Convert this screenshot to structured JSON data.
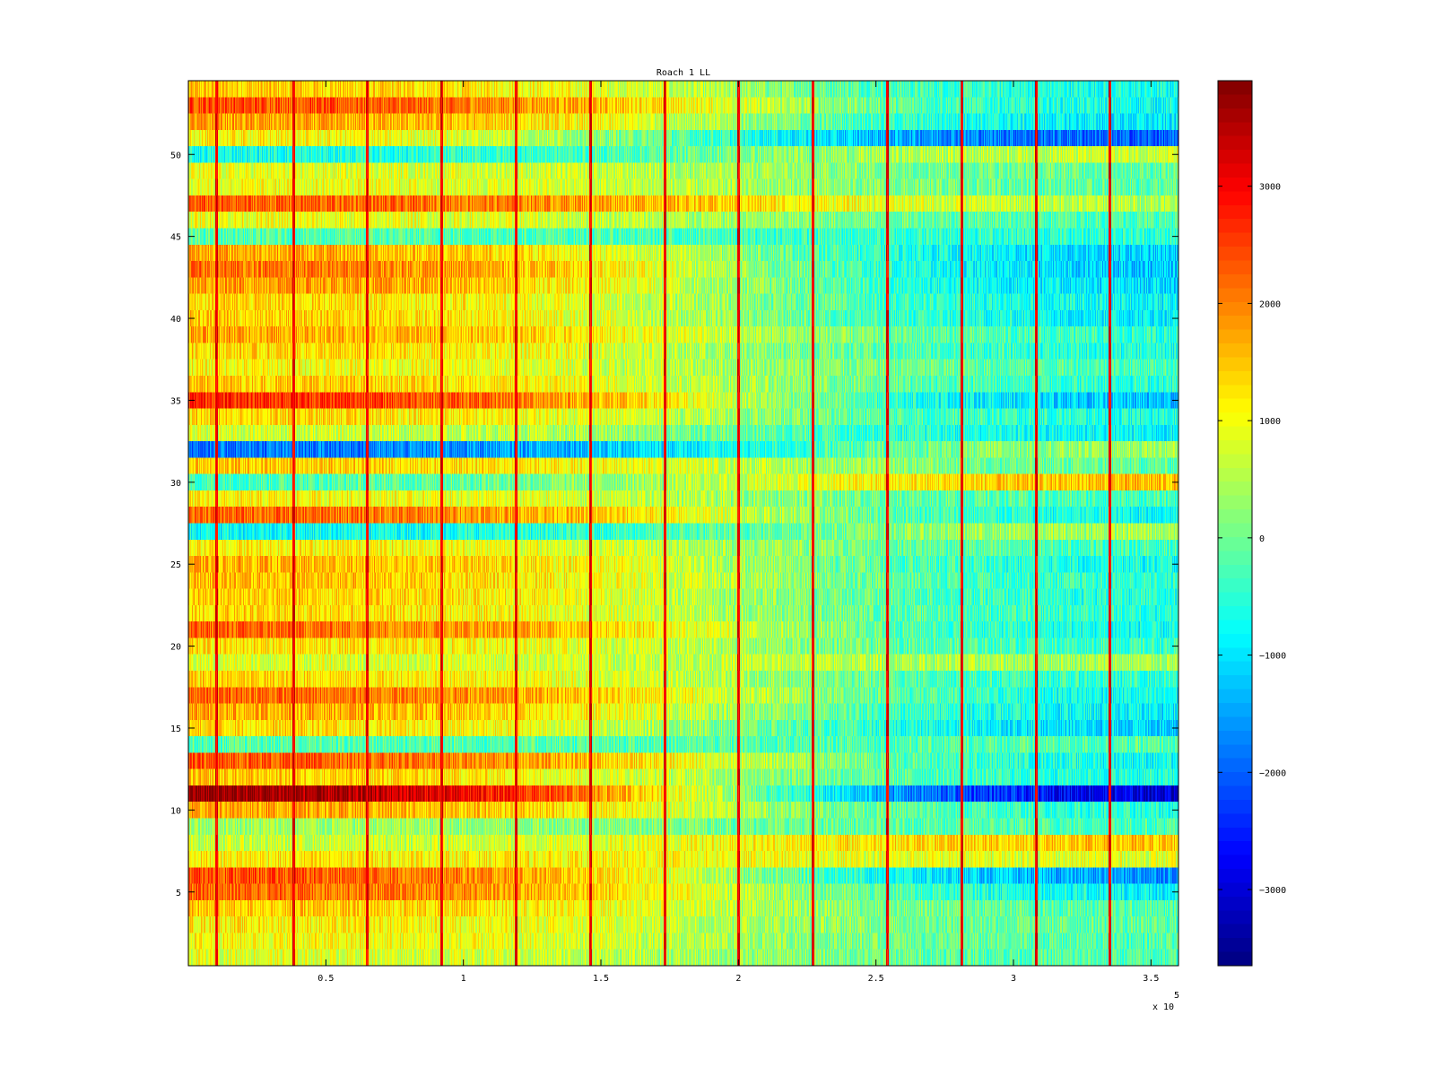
{
  "chart_data": {
    "type": "heatmap",
    "title": "Roach 1 LL",
    "xlabel": "",
    "ylabel": "",
    "x_multiplier_label": "x 10",
    "x_multiplier_exponent": "5",
    "xlim": [
      0,
      3.6
    ],
    "ylim": [
      0.5,
      54.5
    ],
    "rows": 54,
    "clim": [
      -3650,
      3900
    ],
    "colormap": "jet",
    "x_ticks": [
      {
        "value": 0.5,
        "label": "0.5"
      },
      {
        "value": 1,
        "label": "1"
      },
      {
        "value": 1.5,
        "label": "1.5"
      },
      {
        "value": 2,
        "label": "2"
      },
      {
        "value": 2.5,
        "label": "2.5"
      },
      {
        "value": 3,
        "label": "3"
      },
      {
        "value": 3.5,
        "label": "3.5"
      }
    ],
    "y_ticks": [
      {
        "value": 5,
        "label": "5"
      },
      {
        "value": 10,
        "label": "10"
      },
      {
        "value": 15,
        "label": "15"
      },
      {
        "value": 20,
        "label": "20"
      },
      {
        "value": 25,
        "label": "25"
      },
      {
        "value": 30,
        "label": "30"
      },
      {
        "value": 35,
        "label": "35"
      },
      {
        "value": 40,
        "label": "40"
      },
      {
        "value": 45,
        "label": "45"
      },
      {
        "value": 50,
        "label": "50"
      }
    ],
    "colorbar_ticks": [
      {
        "value": 3000,
        "label": "3000"
      },
      {
        "value": 2000,
        "label": "2000"
      },
      {
        "value": 1000,
        "label": "1000"
      },
      {
        "value": 0,
        "label": "0"
      },
      {
        "value": -1000,
        "label": "−1000"
      },
      {
        "value": -2000,
        "label": "−2000"
      },
      {
        "value": -3000,
        "label": "−3000"
      }
    ],
    "event_lines_x": [
      0.1,
      0.38,
      0.65,
      0.92,
      1.19,
      1.46,
      1.73,
      2.0,
      2.27,
      2.54,
      2.81,
      3.08,
      3.35
    ],
    "row_profiles": [
      {
        "row": 54,
        "start": 1500,
        "end": -800
      },
      {
        "row": 53,
        "start": 2500,
        "end": -900
      },
      {
        "row": 52,
        "start": 1800,
        "end": -1100
      },
      {
        "row": 51,
        "start": 1200,
        "end": -2200
      },
      {
        "row": 50,
        "start": -700,
        "end": 800
      },
      {
        "row": 49,
        "start": 900,
        "end": -100
      },
      {
        "row": 48,
        "start": 1000,
        "end": -200
      },
      {
        "row": 47,
        "start": 2300,
        "end": 400
      },
      {
        "row": 46,
        "start": 1000,
        "end": -300
      },
      {
        "row": 45,
        "start": -200,
        "end": -500
      },
      {
        "row": 44,
        "start": 1800,
        "end": -1300
      },
      {
        "row": 43,
        "start": 2200,
        "end": -1400
      },
      {
        "row": 42,
        "start": 1900,
        "end": -1200
      },
      {
        "row": 41,
        "start": 1400,
        "end": -900
      },
      {
        "row": 40,
        "start": 1500,
        "end": -1000
      },
      {
        "row": 39,
        "start": 1800,
        "end": -600
      },
      {
        "row": 38,
        "start": 1400,
        "end": -700
      },
      {
        "row": 37,
        "start": 1100,
        "end": -300
      },
      {
        "row": 36,
        "start": 1500,
        "end": -600
      },
      {
        "row": 35,
        "start": 2800,
        "end": -1500
      },
      {
        "row": 34,
        "start": 1400,
        "end": -700
      },
      {
        "row": 33,
        "start": 800,
        "end": -900
      },
      {
        "row": 32,
        "start": -1900,
        "end": 500
      },
      {
        "row": 31,
        "start": 1500,
        "end": -200
      },
      {
        "row": 30,
        "start": -300,
        "end": 1600
      },
      {
        "row": 29,
        "start": 1100,
        "end": -400
      },
      {
        "row": 28,
        "start": 2300,
        "end": -900
      },
      {
        "row": 27,
        "start": -800,
        "end": 500
      },
      {
        "row": 26,
        "start": 1200,
        "end": -400
      },
      {
        "row": 25,
        "start": 1700,
        "end": -800
      },
      {
        "row": 24,
        "start": 1600,
        "end": -600
      },
      {
        "row": 23,
        "start": 1500,
        "end": -700
      },
      {
        "row": 22,
        "start": 1400,
        "end": -600
      },
      {
        "row": 21,
        "start": 2300,
        "end": -900
      },
      {
        "row": 20,
        "start": 1300,
        "end": -500
      },
      {
        "row": 19,
        "start": 800,
        "end": 400
      },
      {
        "row": 18,
        "start": 1400,
        "end": -600
      },
      {
        "row": 17,
        "start": 2300,
        "end": -900
      },
      {
        "row": 16,
        "start": 1800,
        "end": -1000
      },
      {
        "row": 15,
        "start": 1400,
        "end": -1200
      },
      {
        "row": 14,
        "start": -200,
        "end": -200
      },
      {
        "row": 13,
        "start": 2400,
        "end": -900
      },
      {
        "row": 12,
        "start": 1500,
        "end": -700
      },
      {
        "row": 11,
        "start": 3900,
        "end": -3300
      },
      {
        "row": 10,
        "start": 1800,
        "end": -700
      },
      {
        "row": 9,
        "start": 400,
        "end": -300
      },
      {
        "row": 8,
        "start": 600,
        "end": 1500
      },
      {
        "row": 7,
        "start": 1200,
        "end": 800
      },
      {
        "row": 6,
        "start": 2500,
        "end": -1800
      },
      {
        "row": 5,
        "start": 2300,
        "end": -1000
      },
      {
        "row": 4,
        "start": 1500,
        "end": -300
      },
      {
        "row": 3,
        "start": 1200,
        "end": -200
      },
      {
        "row": 2,
        "start": 1100,
        "end": -300
      },
      {
        "row": 1,
        "start": 900,
        "end": -300
      }
    ]
  }
}
